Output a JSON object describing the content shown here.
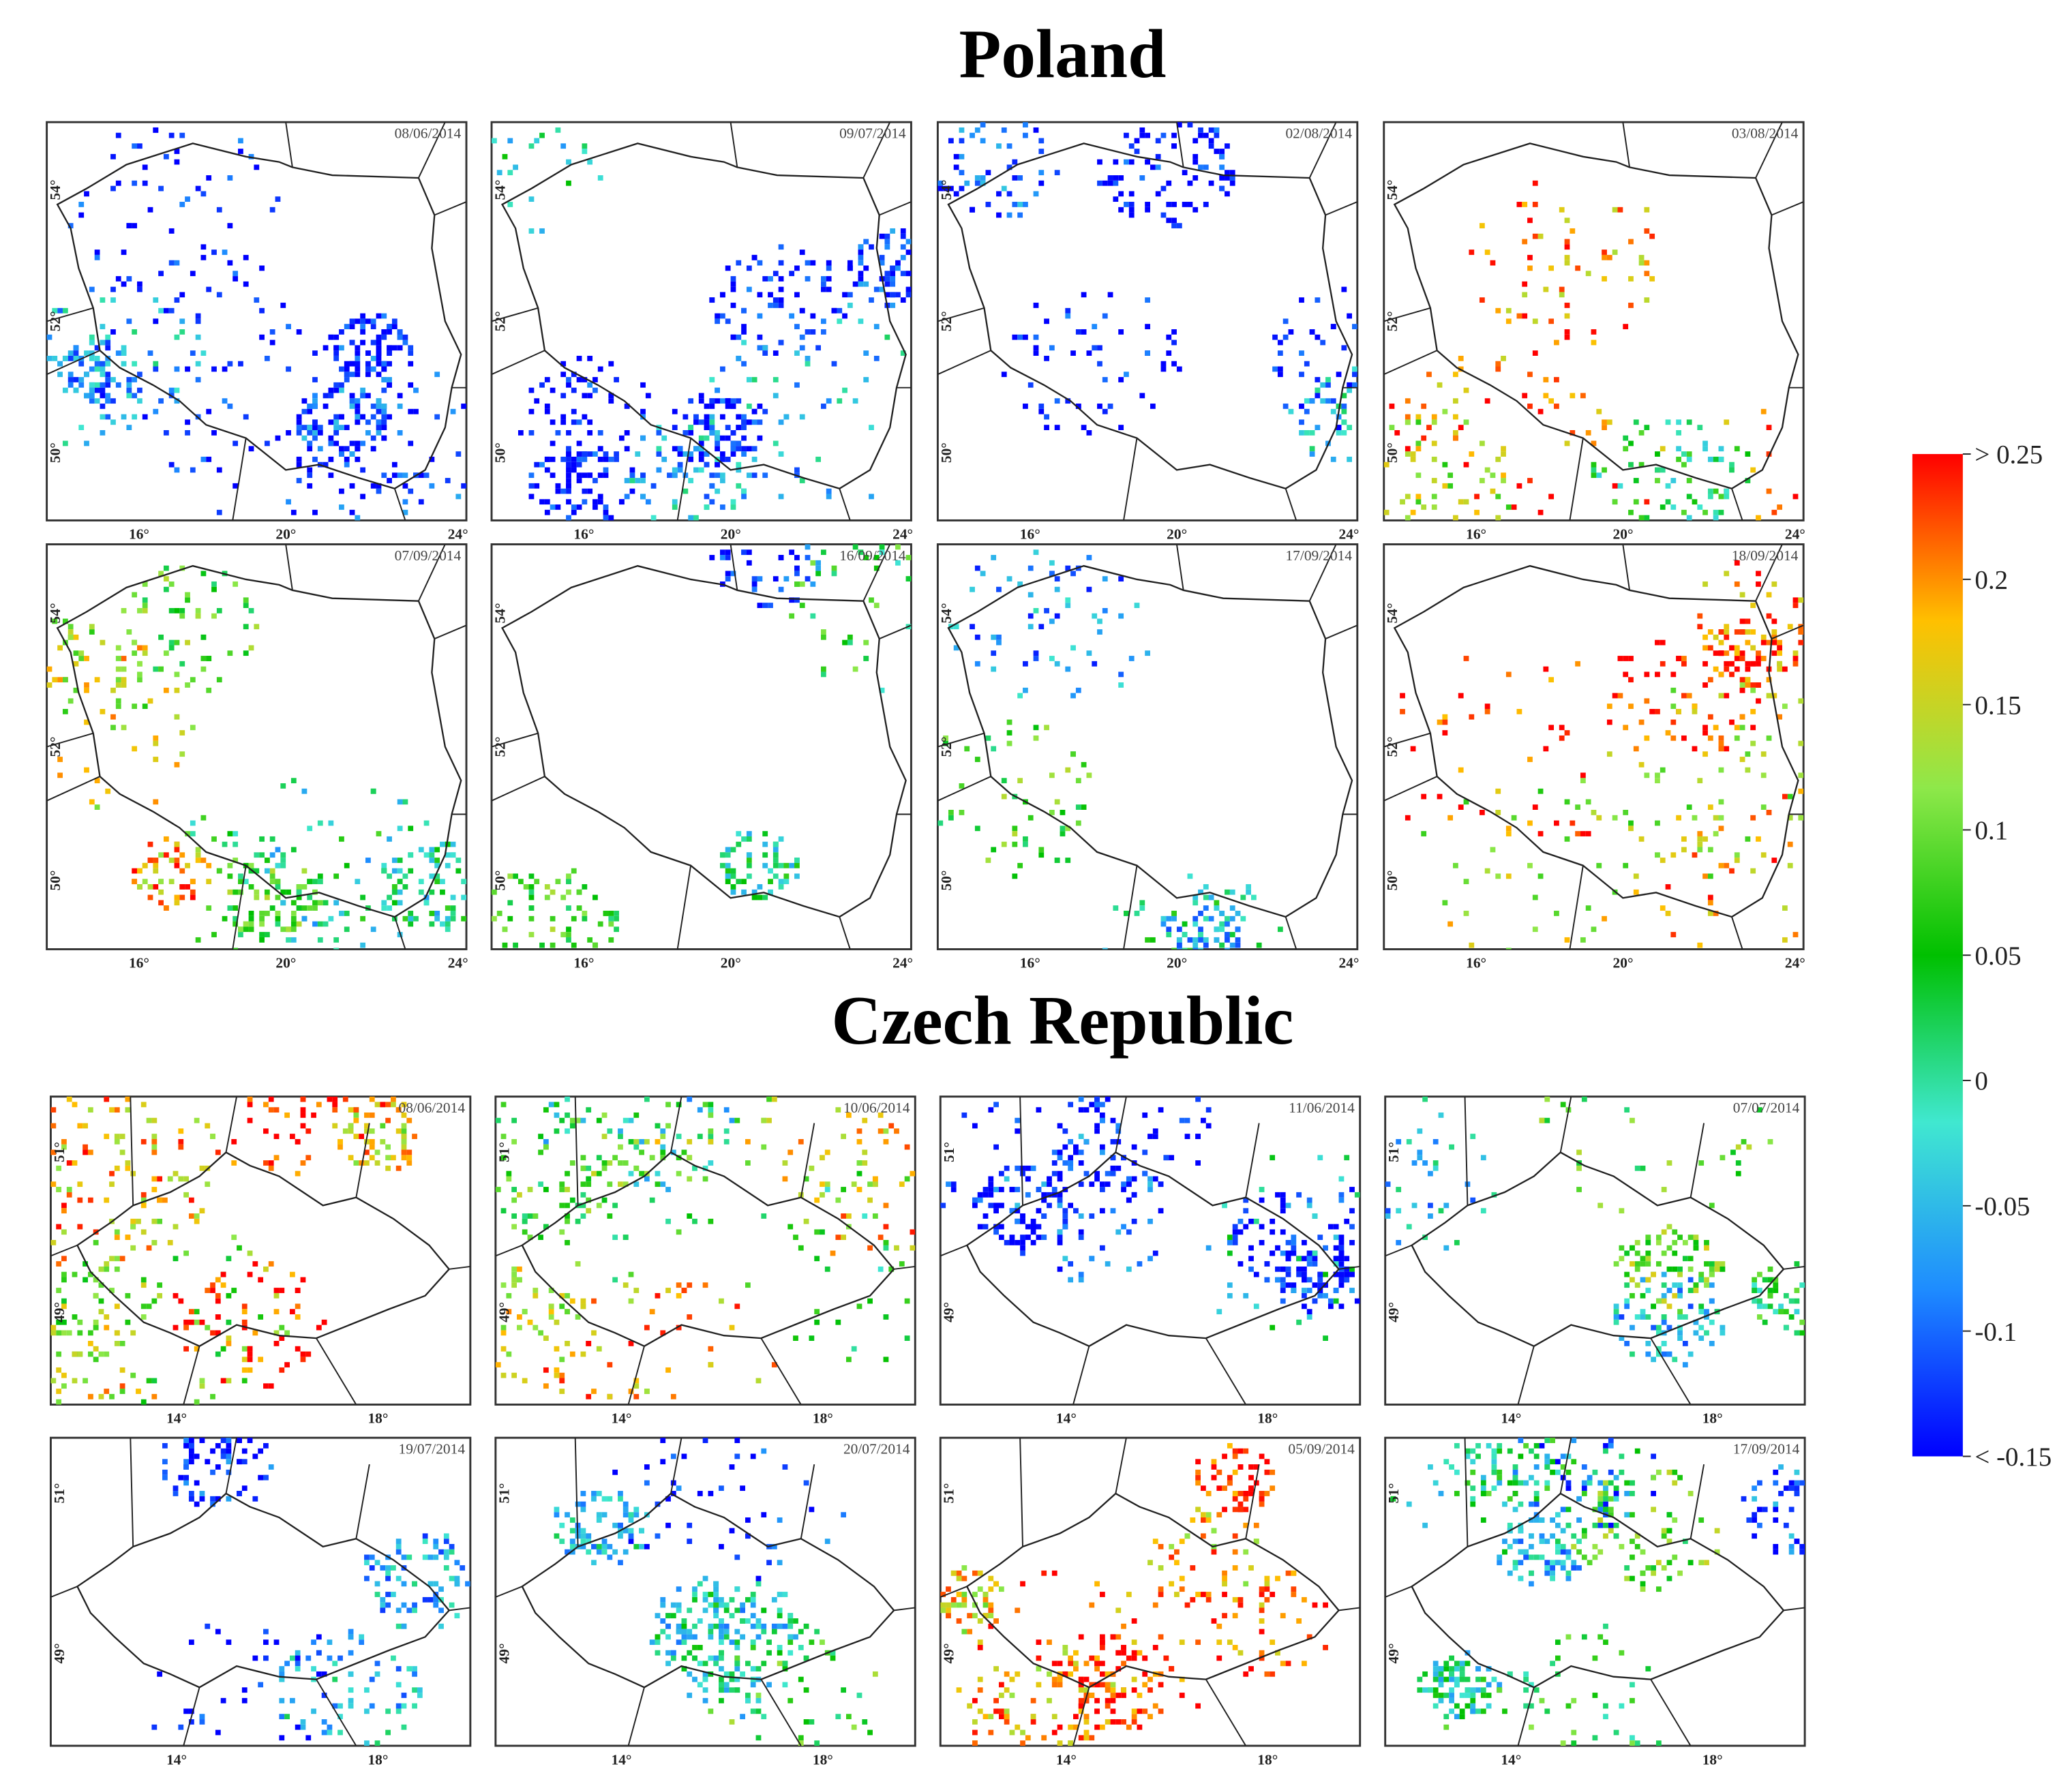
{
  "poland": {
    "title": "Poland",
    "x_ticks": [
      "16°",
      "20°",
      "24°"
    ],
    "y_ticks": [
      "54°",
      "52°",
      "50°"
    ],
    "panels": [
      {
        "date": "08/06/2014"
      },
      {
        "date": "09/07/2014"
      },
      {
        "date": "02/08/2014"
      },
      {
        "date": "03/08/2014"
      },
      {
        "date": "07/09/2014"
      },
      {
        "date": "16/09/2014"
      },
      {
        "date": "17/09/2014"
      },
      {
        "date": "18/09/2014"
      }
    ]
  },
  "czech": {
    "title": "Czech Republic",
    "x_ticks": [
      "14°",
      "18°"
    ],
    "y_ticks": [
      "51°",
      "49°"
    ],
    "panels": [
      {
        "date": "08/06/2014"
      },
      {
        "date": "10/06/2014"
      },
      {
        "date": "11/06/2014"
      },
      {
        "date": "07/07/2014"
      },
      {
        "date": "19/07/2014"
      },
      {
        "date": "20/07/2014"
      },
      {
        "date": "05/09/2014"
      },
      {
        "date": "17/09/2014"
      }
    ]
  },
  "colorbar": {
    "ylim": [
      -0.15,
      0.25
    ],
    "ticks": [
      {
        "value": 0.25,
        "label": "> 0.25"
      },
      0.2,
      0.15,
      0.1,
      0.05,
      0,
      -0.05,
      -0.1,
      {
        "value": -0.15,
        "label": "< -0.15"
      }
    ],
    "colors": [
      "#0000ff",
      "#1e8cff",
      "#40e8d0",
      "#00c000",
      "#8ee84a",
      "#ffc000",
      "#ff0000"
    ]
  }
}
